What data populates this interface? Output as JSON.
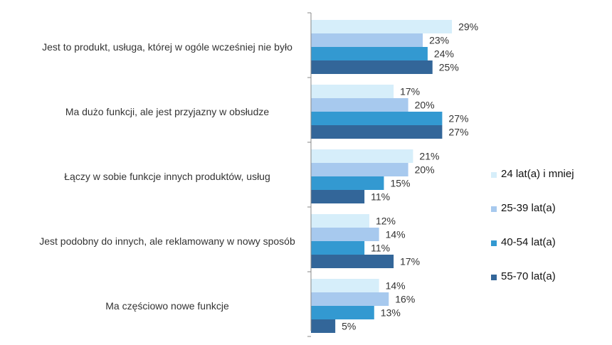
{
  "chart_data": {
    "type": "bar",
    "orientation": "horizontal",
    "categories": [
      "Jest to produkt, usługa, której w ogóle wcześniej nie było",
      "Ma dużo funkcji, ale jest przyjazny w obsłudze",
      "Łączy w sobie funkcje innych produktów, usług",
      "Jest podobny do innych, ale reklamowany w nowy sposób",
      "Ma częściowo nowe funkcje"
    ],
    "series": [
      {
        "name": "24 lat(a) i mniej",
        "color": "#d6eefa",
        "values": [
          29,
          17,
          21,
          12,
          14
        ],
        "labels": [
          "29%",
          "17%",
          "21%",
          "12%",
          "14%"
        ]
      },
      {
        "name": "25-39 lat(a)",
        "color": "#a7c9ee",
        "values": [
          23,
          20,
          20,
          14,
          16
        ],
        "labels": [
          "23%",
          "20%",
          "20%",
          "14%",
          "16%"
        ]
      },
      {
        "name": "40-54 lat(a)",
        "color": "#3399d1",
        "values": [
          24,
          27,
          15,
          11,
          13
        ],
        "labels": [
          "24%",
          "27%",
          "15%",
          "11%",
          "13%"
        ]
      },
      {
        "name": "55-70 lat(a)",
        "color": "#336699",
        "values": [
          25,
          27,
          11,
          17,
          5
        ],
        "labels": [
          "25%",
          "27%",
          "11%",
          "17%",
          "5%"
        ]
      }
    ],
    "xlim": [
      0,
      30
    ],
    "legend_position": "right",
    "grid": false,
    "title": "",
    "xlabel": "",
    "ylabel": ""
  }
}
